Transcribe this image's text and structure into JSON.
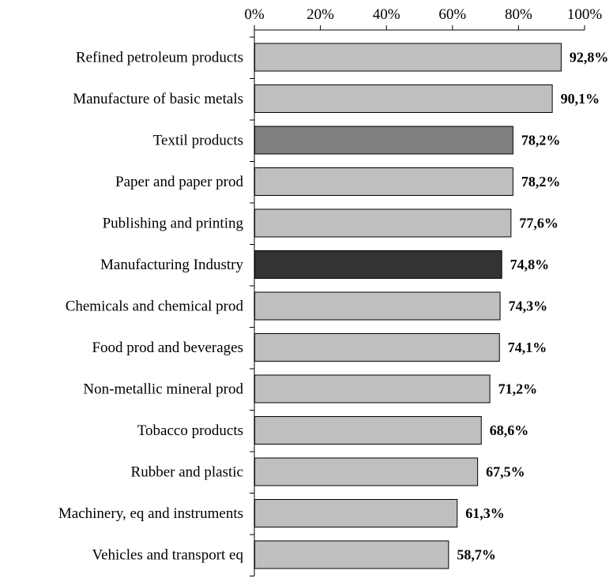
{
  "chart_data": {
    "type": "bar",
    "orientation": "horizontal",
    "xlim": [
      0,
      100
    ],
    "x_ticks": [
      "0%",
      "20%",
      "40%",
      "60%",
      "80%",
      "100%"
    ],
    "x_axis_position": "top",
    "grid": false,
    "legend": "none",
    "categories": [
      "Refined petroleum products",
      "Manufacture of basic metals",
      "Textil products",
      "Paper and paper prod",
      "Publishing and printing",
      "Manufacturing Industry",
      "Chemicals and chemical prod",
      "Food prod and beverages",
      "Non-metallic mineral prod",
      "Tobacco products",
      "Rubber and plastic",
      "Machinery, eq and instruments",
      "Vehicles and transport eq"
    ],
    "values": [
      92.8,
      90.1,
      78.2,
      78.2,
      77.6,
      74.8,
      74.3,
      74.1,
      71.2,
      68.6,
      67.5,
      61.3,
      58.7
    ],
    "value_labels": [
      "92,8%",
      "90,1%",
      "78,2%",
      "78,2%",
      "77,6%",
      "74,8%",
      "74,3%",
      "74,1%",
      "71,2%",
      "68,6%",
      "67,5%",
      "61,3%",
      "58,7%"
    ],
    "bar_colors": [
      "#bfbfbf",
      "#bfbfbf",
      "#808080",
      "#bfbfbf",
      "#bfbfbf",
      "#333333",
      "#bfbfbf",
      "#bfbfbf",
      "#bfbfbf",
      "#bfbfbf",
      "#bfbfbf",
      "#bfbfbf",
      "#bfbfbf"
    ]
  }
}
